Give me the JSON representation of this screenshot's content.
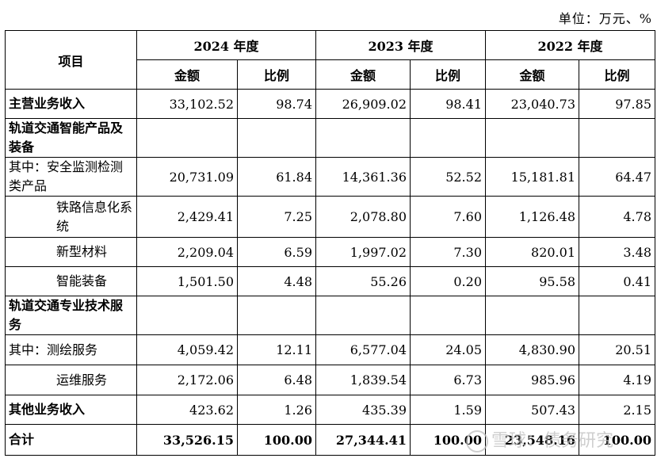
{
  "unit_label": "单位：万元、%",
  "header": {
    "item": "项目",
    "years": [
      "2024 年度",
      "2023 年度",
      "2022 年度"
    ],
    "amount": "金额",
    "ratio": "比例"
  },
  "rows": [
    {
      "label": "主营业务收入",
      "values": [
        "33,102.52",
        "98.74",
        "26,909.02",
        "98.41",
        "23,040.73",
        "97.85"
      ]
    },
    {
      "label": "轨道交通智能产品及装备",
      "values": [
        "",
        "",
        "",
        "",
        "",
        ""
      ]
    },
    {
      "label": "其中：安全监测检测类产品",
      "values": [
        "20,731.09",
        "61.84",
        "14,361.36",
        "52.52",
        "15,181.81",
        "64.47"
      ]
    },
    {
      "label": "铁路信息化系统",
      "values": [
        "2,429.41",
        "7.25",
        "2,078.80",
        "7.60",
        "1,126.48",
        "4.78"
      ]
    },
    {
      "label": "新型材料",
      "values": [
        "2,209.04",
        "6.59",
        "1,997.02",
        "7.30",
        "820.01",
        "3.48"
      ]
    },
    {
      "label": "智能装备",
      "values": [
        "1,501.50",
        "4.48",
        "55.26",
        "0.20",
        "95.58",
        "0.41"
      ]
    },
    {
      "label": "轨道交通专业技术服务",
      "values": [
        "",
        "",
        "",
        "",
        "",
        ""
      ]
    },
    {
      "label": "其中：测绘服务",
      "values": [
        "4,059.42",
        "12.11",
        "6,577.04",
        "24.05",
        "4,830.90",
        "20.51"
      ]
    },
    {
      "label": "运维服务",
      "values": [
        "2,172.06",
        "6.48",
        "1,839.54",
        "6.73",
        "985.96",
        "4.19"
      ]
    },
    {
      "label": "其他业务收入",
      "values": [
        "423.62",
        "1.26",
        "435.39",
        "1.59",
        "507.43",
        "2.15"
      ]
    },
    {
      "label": "合计",
      "values": [
        "33,526.15",
        "100.00",
        "27,344.41",
        "100.00",
        "23,548.16",
        "100.00"
      ]
    }
  ],
  "watermark": "雪球：债务研究"
}
